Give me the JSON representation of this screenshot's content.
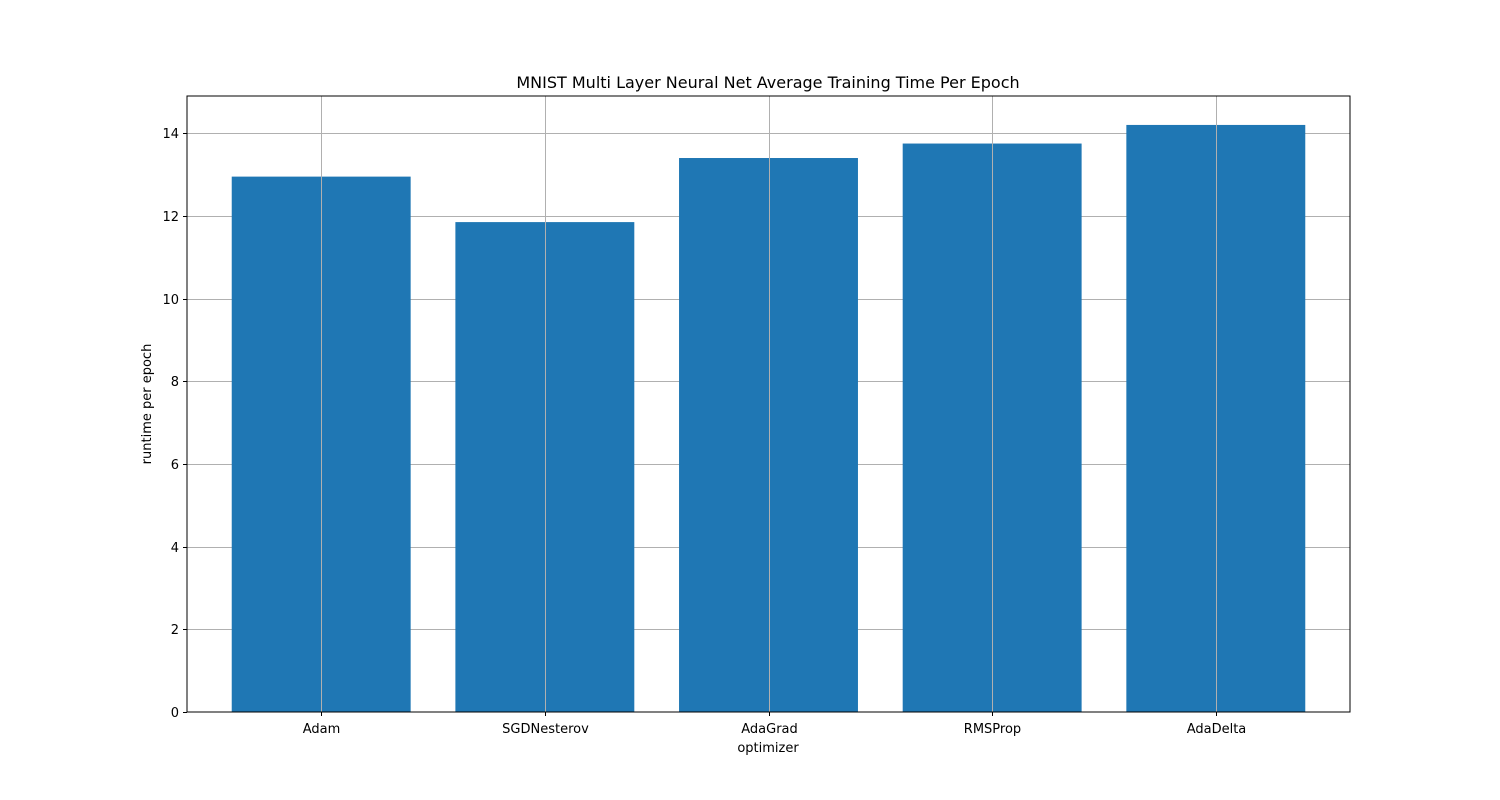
{
  "chart_data": {
    "type": "bar",
    "title": "MNIST Multi Layer Neural Net Average Training Time Per Epoch",
    "xlabel": "optimizer",
    "ylabel": "runtime per epoch",
    "categories": [
      "Adam",
      "SGDNesterov",
      "AdaGrad",
      "RMSProp",
      "AdaDelta"
    ],
    "values": [
      12.95,
      11.85,
      13.4,
      13.75,
      14.2
    ],
    "ylim": [
      0,
      14.9
    ],
    "yticks": [
      0,
      2,
      4,
      6,
      8,
      10,
      12,
      14
    ],
    "ytick_labels": [
      "0",
      "2",
      "4",
      "6",
      "8",
      "10",
      "12",
      "14"
    ],
    "grid": true,
    "bar_color": "#1f77b4",
    "grid_color": "#b0b0b0"
  }
}
